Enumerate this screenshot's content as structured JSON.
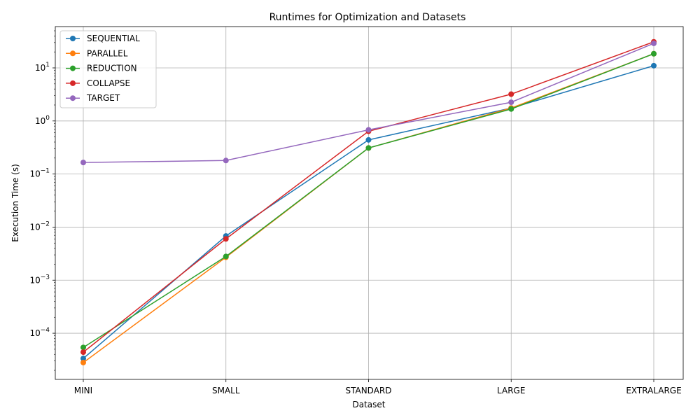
{
  "chart_data": {
    "type": "line",
    "title": "Runtimes for Optimization and Datasets",
    "xlabel": "Dataset",
    "ylabel": "Execution Time (s)",
    "yscale": "log",
    "ylim": [
      1.35e-05,
      60
    ],
    "grid": true,
    "legend_position": "top-left",
    "categories": [
      "MINI",
      "SMALL",
      "STANDARD",
      "LARGE",
      "EXTRALARGE"
    ],
    "yticks": [
      {
        "value": 0.0001,
        "base": "10",
        "exp": "−4"
      },
      {
        "value": 0.001,
        "base": "10",
        "exp": "−3"
      },
      {
        "value": 0.01,
        "base": "10",
        "exp": "−2"
      },
      {
        "value": 0.1,
        "base": "10",
        "exp": "−1"
      },
      {
        "value": 1,
        "base": "10",
        "exp": "0"
      },
      {
        "value": 10,
        "base": "10",
        "exp": "1"
      }
    ],
    "series": [
      {
        "name": "SEQUENTIAL",
        "color": "#1f77b4",
        "values": [
          3.35e-05,
          0.0068,
          0.44,
          1.75,
          11.0
        ]
      },
      {
        "name": "PARALLEL",
        "color": "#ff7f0e",
        "values": [
          2.8e-05,
          0.0027,
          0.31,
          1.75,
          18.5
        ]
      },
      {
        "name": "REDUCTION",
        "color": "#2ca02c",
        "values": [
          5.4e-05,
          0.0028,
          0.31,
          1.68,
          18.5
        ]
      },
      {
        "name": "COLLAPSE",
        "color": "#d62728",
        "values": [
          4.4e-05,
          0.006,
          0.64,
          3.2,
          31.0
        ]
      },
      {
        "name": "TARGET",
        "color": "#9467bd",
        "values": [
          0.165,
          0.18,
          0.68,
          2.25,
          29.0
        ]
      }
    ]
  }
}
